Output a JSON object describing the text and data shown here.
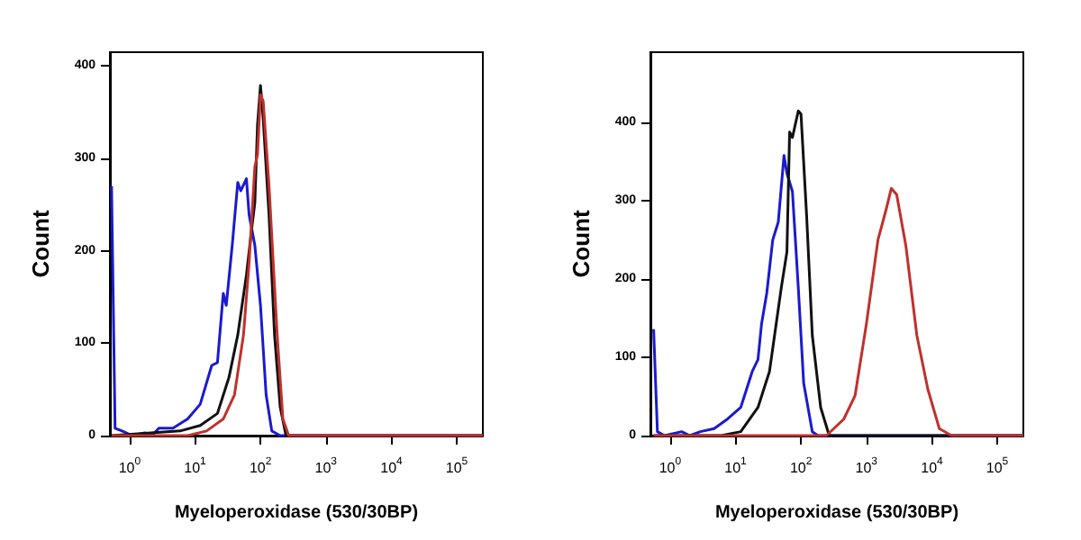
{
  "chart_data": [
    {
      "type": "line",
      "xlabel": "Myeloperoxidase (530/30BP)",
      "ylabel": "Count",
      "log": "x",
      "grid": false,
      "marker": "none",
      "line_style": "solid",
      "xlim": [
        0.5,
        250000
      ],
      "ylim": [
        0,
        415
      ],
      "xticks": [
        {
          "value": 1,
          "label": "10$^{0}$"
        },
        {
          "value": 10,
          "label": "10$^{1}$"
        },
        {
          "value": 100,
          "label": "10$^{2}$"
        },
        {
          "value": 1000,
          "label": "10$^{3}$"
        },
        {
          "value": 10000,
          "label": "10$^{4}$"
        },
        {
          "value": 100000,
          "label": "10$^{5}$"
        }
      ],
      "yticks": [
        0,
        100,
        200,
        300,
        400
      ],
      "series": [
        {
          "color": "#1a1ad0",
          "x": [
            0.53,
            0.6,
            0.77,
            1.1,
            1.7,
            2.2,
            2.8,
            4.6,
            7.7,
            12,
            18,
            22,
            27,
            30,
            37,
            45,
            50,
            61,
            67,
            82,
            100,
            122,
            149,
            200,
            250000
          ],
          "values": [
            270,
            8,
            5,
            0,
            3,
            0,
            8,
            8,
            18,
            34,
            76,
            79,
            154,
            141,
            206,
            274,
            265,
            278,
            239,
            206,
            141,
            44,
            5,
            0,
            0
          ]
        },
        {
          "color": "#111111",
          "x": [
            0.53,
            5.9,
            12,
            22,
            33,
            45,
            61,
            74,
            82,
            90,
            100,
            110,
            135,
            164,
            200,
            245,
            250000
          ],
          "values": [
            0,
            5,
            11,
            24,
            63,
            109,
            174,
            226,
            252,
            336,
            379,
            343,
            239,
            109,
            31,
            0,
            0
          ]
        },
        {
          "color": "#c0302c",
          "x": [
            0.53,
            7.7,
            15,
            27,
            40,
            55,
            67,
            82,
            90,
            100,
            110,
            135,
            180,
            220,
            270,
            250000
          ],
          "values": [
            0,
            0,
            5,
            18,
            44,
            109,
            187,
            291,
            304,
            369,
            362,
            271,
            109,
            18,
            0,
            0
          ]
        }
      ]
    },
    {
      "type": "line",
      "xlabel": "Myeloperoxidase (530/30BP)",
      "ylabel": "Count",
      "log": "x",
      "grid": false,
      "marker": "none",
      "line_style": "solid",
      "xlim": [
        0.5,
        250000
      ],
      "ylim": [
        0,
        490
      ],
      "xticks": [
        {
          "value": 1,
          "label": "10$^{0}$"
        },
        {
          "value": 10,
          "label": "10$^{1}$"
        },
        {
          "value": 100,
          "label": "10$^{2}$"
        },
        {
          "value": 1000,
          "label": "10$^{3}$"
        },
        {
          "value": 10000,
          "label": "10$^{4}$"
        },
        {
          "value": 100000,
          "label": "10$^{5}$"
        }
      ],
      "yticks": [
        0,
        100,
        200,
        300,
        400
      ],
      "series": [
        {
          "color": "#1a1ad0",
          "x": [
            0.56,
            0.64,
            0.82,
            1.5,
            2,
            2.9,
            4.7,
            7.5,
            12,
            18,
            22,
            25,
            30,
            37,
            45,
            55,
            61,
            74,
            91,
            110,
            149,
            182,
            250000
          ],
          "values": [
            136,
            5,
            0,
            5,
            0,
            5,
            9,
            21,
            36,
            82,
            97,
            143,
            182,
            250,
            273,
            358,
            335,
            312,
            189,
            67,
            5,
            0,
            0
          ]
        },
        {
          "color": "#111111",
          "x": [
            0.56,
            6,
            12,
            22,
            33,
            50,
            61,
            67,
            74,
            91,
            100,
            122,
            149,
            200,
            270,
            250000
          ],
          "values": [
            0,
            0,
            5,
            36,
            82,
            189,
            235,
            388,
            381,
            415,
            411,
            281,
            128,
            36,
            0,
            0
          ]
        },
        {
          "color": "#c0302c",
          "x": [
            0.56,
            245,
            450,
            670,
            1000,
            1500,
            2000,
            2400,
            2900,
            4000,
            5900,
            8700,
            13000,
            20000,
            250000
          ],
          "values": [
            0,
            0,
            21,
            51,
            143,
            250,
            289,
            316,
            308,
            243,
            128,
            59,
            9,
            0,
            0
          ]
        }
      ]
    }
  ]
}
